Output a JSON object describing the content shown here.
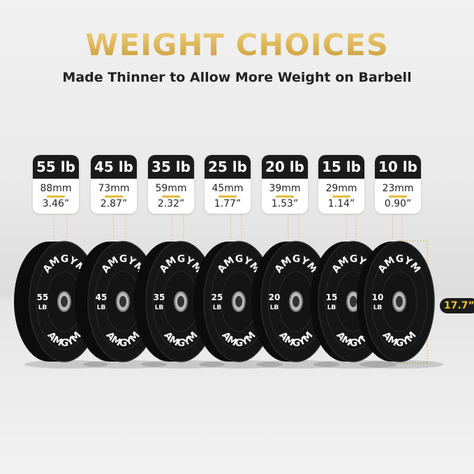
{
  "title": "WEIGHT CHOICES",
  "subtitle": "Made Thinner to Allow More Weight on Barbell",
  "brand": "AMGYM",
  "diameter": "17.7”",
  "accent_color": "#e2bb3d",
  "plates": [
    {
      "weight": "55 lb",
      "mm": "88mm",
      "inches": "3.46”",
      "plate_num": "55",
      "unit": "LB"
    },
    {
      "weight": "45 lb",
      "mm": "73mm",
      "inches": "2.87”",
      "plate_num": "45",
      "unit": "LB"
    },
    {
      "weight": "35 lb",
      "mm": "59mm",
      "inches": "2.32”",
      "plate_num": "35",
      "unit": "LB"
    },
    {
      "weight": "25 lb",
      "mm": "45mm",
      "inches": "1.77”",
      "plate_num": "25",
      "unit": "LB"
    },
    {
      "weight": "20 lb",
      "mm": "39mm",
      "inches": "1.53”",
      "plate_num": "20",
      "unit": "LB"
    },
    {
      "weight": "15 lb",
      "mm": "29mm",
      "inches": "1.14”",
      "plate_num": "15",
      "unit": "LB"
    },
    {
      "weight": "10 lb",
      "mm": "23mm",
      "inches": "0.90”",
      "plate_num": "10",
      "unit": "LB"
    }
  ]
}
